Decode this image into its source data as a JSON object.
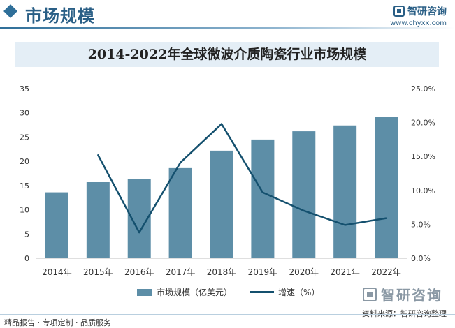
{
  "header": {
    "title": "市场规模",
    "brand_name": "智研咨询",
    "brand_url": "www.chyxx.com"
  },
  "chart_data": {
    "type": "bar",
    "title": "2014-2022年全球微波介质陶瓷行业市场规模",
    "categories": [
      "2014年",
      "2015年",
      "2016年",
      "2017年",
      "2018年",
      "2019年",
      "2020年",
      "2021年",
      "2022年"
    ],
    "series": [
      {
        "name": "市场规模（亿美元）",
        "type": "bar",
        "axis": "left",
        "color": "#5d8ea7",
        "values": [
          13.6,
          15.7,
          16.3,
          18.6,
          22.2,
          24.5,
          26.2,
          27.4,
          29.1
        ]
      },
      {
        "name": "增速（%）",
        "type": "line",
        "axis": "right",
        "color": "#14506e",
        "values": [
          null,
          15.2,
          3.8,
          14.1,
          19.8,
          9.7,
          7.0,
          4.9,
          5.9
        ]
      }
    ],
    "y_left": {
      "min": 0,
      "max": 35,
      "ticks": [
        0,
        5,
        10,
        15,
        20,
        25,
        30,
        35
      ]
    },
    "y_right": {
      "min": 0,
      "max": 25,
      "ticks": [
        "0.0%",
        "5.0%",
        "10.0%",
        "15.0%",
        "20.0%",
        "25.0%"
      ]
    },
    "grid": false,
    "legend_position": "bottom"
  },
  "legend": {
    "bar_label": "市场规模（亿美元）",
    "line_label": "增速（%）"
  },
  "footer": {
    "left_text": "精品报告 · 专项定制 · 品质服务",
    "source_text": "资料来源：智研咨询整理",
    "brand_name": "智研咨询"
  }
}
